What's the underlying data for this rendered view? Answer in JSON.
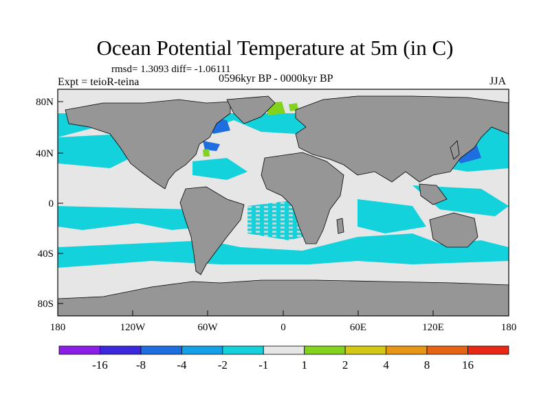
{
  "header": {
    "title": "Ocean Potential Temperature at 5m (in C)",
    "stats": "rmsd= 1.3093 diff= -1.06111",
    "experiment": "Expt = teioR-teina",
    "period": "0596kyr BP - 0000kyr BP",
    "season": "JJA"
  },
  "axes": {
    "x_ticks": [
      "180",
      "120W",
      "60W",
      "0",
      "60E",
      "120E",
      "180"
    ],
    "y_ticks": [
      "80N",
      "40N",
      "0",
      "40S",
      "80S"
    ]
  },
  "colorbar": {
    "labels": [
      "-16",
      "-8",
      "-4",
      "-2",
      "-1",
      "1",
      "2",
      "4",
      "8",
      "16"
    ],
    "colors": [
      "#8a1ee6",
      "#3c28dc",
      "#1e6ee0",
      "#14a0e6",
      "#14d2dc",
      "#e6e6e6",
      "#82d21e",
      "#d2c814",
      "#e69614",
      "#e66414",
      "#e62814"
    ]
  },
  "colors": {
    "land": "#969696",
    "near_zero": "#e6e6e6",
    "cool_light": "#14d2dc",
    "cool_mid": "#14a0e6",
    "cool_deep": "#1e6ee0",
    "warm": "#82d21e"
  }
}
